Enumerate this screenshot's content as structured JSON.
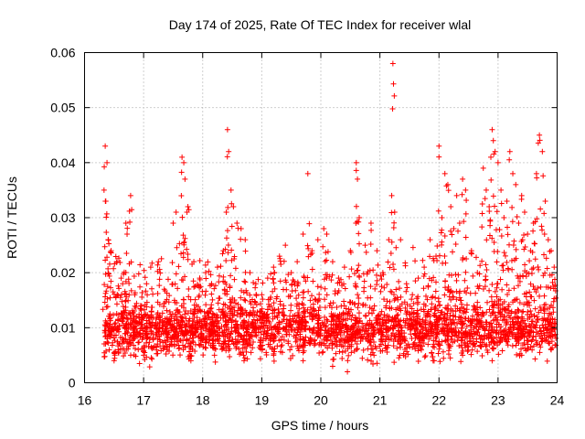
{
  "chart_data": {
    "type": "scatter",
    "title": "Day 174 of 2025, Rate Of TEC Index for receiver wlal",
    "xlabel": "GPS time / hours",
    "ylabel": "ROTI / TECUs",
    "xlim": [
      16,
      24
    ],
    "ylim": [
      0,
      0.06
    ],
    "x_ticks": [
      "16",
      "17",
      "18",
      "19",
      "20",
      "21",
      "22",
      "23",
      "24"
    ],
    "y_ticks": [
      "0",
      "0.01",
      "0.02",
      "0.03",
      "0.04",
      "0.05",
      "0.06"
    ],
    "grid": true,
    "marker": "plus",
    "color": "#ff0000",
    "series": [
      {
        "name": "ROTI",
        "points": [
          [
            16.35,
            0.043
          ],
          [
            16.38,
            0.04
          ],
          [
            16.33,
            0.035
          ],
          [
            16.36,
            0.033
          ],
          [
            16.4,
            0.026
          ],
          [
            16.45,
            0.024
          ],
          [
            16.55,
            0.022
          ],
          [
            16.62,
            0.019
          ],
          [
            16.7,
            0.029
          ],
          [
            16.78,
            0.034
          ],
          [
            16.72,
            0.027
          ],
          [
            16.85,
            0.016
          ],
          [
            16.95,
            0.014
          ],
          [
            17.05,
            0.018
          ],
          [
            17.12,
            0.021
          ],
          [
            17.25,
            0.022
          ],
          [
            17.35,
            0.017
          ],
          [
            17.5,
            0.029
          ],
          [
            17.55,
            0.031
          ],
          [
            17.65,
            0.041
          ],
          [
            17.68,
            0.04
          ],
          [
            17.7,
            0.037
          ],
          [
            17.75,
            0.032
          ],
          [
            17.85,
            0.022
          ],
          [
            17.95,
            0.019
          ],
          [
            18.05,
            0.02
          ],
          [
            18.15,
            0.018
          ],
          [
            18.25,
            0.021
          ],
          [
            18.35,
            0.024
          ],
          [
            18.4,
            0.031
          ],
          [
            18.42,
            0.046
          ],
          [
            18.44,
            0.042
          ],
          [
            18.48,
            0.035
          ],
          [
            18.52,
            0.032
          ],
          [
            18.58,
            0.029
          ],
          [
            18.65,
            0.028
          ],
          [
            18.72,
            0.026
          ],
          [
            18.8,
            0.02
          ],
          [
            18.9,
            0.018
          ],
          [
            19.0,
            0.016
          ],
          [
            19.1,
            0.019
          ],
          [
            19.2,
            0.021
          ],
          [
            19.3,
            0.023
          ],
          [
            19.4,
            0.025
          ],
          [
            19.5,
            0.02
          ],
          [
            19.6,
            0.022
          ],
          [
            19.7,
            0.027
          ],
          [
            19.78,
            0.038
          ],
          [
            19.85,
            0.024
          ],
          [
            19.95,
            0.026
          ],
          [
            20.05,
            0.028
          ],
          [
            20.1,
            0.027
          ],
          [
            20.2,
            0.022
          ],
          [
            20.3,
            0.019
          ],
          [
            20.4,
            0.021
          ],
          [
            20.5,
            0.024
          ],
          [
            20.6,
            0.04
          ],
          [
            20.62,
            0.037
          ],
          [
            20.65,
            0.03
          ],
          [
            20.75,
            0.025
          ],
          [
            20.85,
            0.029
          ],
          [
            20.95,
            0.024
          ],
          [
            21.05,
            0.02
          ],
          [
            21.15,
            0.026
          ],
          [
            21.2,
            0.034
          ],
          [
            21.22,
            0.058
          ],
          [
            21.25,
            0.031
          ],
          [
            21.35,
            0.026
          ],
          [
            21.45,
            0.018
          ],
          [
            21.55,
            0.016
          ],
          [
            21.65,
            0.019
          ],
          [
            21.75,
            0.021
          ],
          [
            21.85,
            0.026
          ],
          [
            21.95,
            0.023
          ],
          [
            22.0,
            0.043
          ],
          [
            22.05,
            0.03
          ],
          [
            22.1,
            0.038
          ],
          [
            22.15,
            0.036
          ],
          [
            22.2,
            0.032
          ],
          [
            22.25,
            0.028
          ],
          [
            22.3,
            0.034
          ],
          [
            22.35,
            0.029
          ],
          [
            22.4,
            0.037
          ],
          [
            22.45,
            0.035
          ],
          [
            22.55,
            0.024
          ],
          [
            22.65,
            0.02
          ],
          [
            22.75,
            0.039
          ],
          [
            22.8,
            0.035
          ],
          [
            22.85,
            0.032
          ],
          [
            22.9,
            0.046
          ],
          [
            22.92,
            0.044
          ],
          [
            22.95,
            0.042
          ],
          [
            23.0,
            0.04
          ],
          [
            23.05,
            0.035
          ],
          [
            23.1,
            0.03
          ],
          [
            23.15,
            0.033
          ],
          [
            23.2,
            0.042
          ],
          [
            23.25,
            0.038
          ],
          [
            23.3,
            0.036
          ],
          [
            23.35,
            0.029
          ],
          [
            23.4,
            0.034
          ],
          [
            23.45,
            0.031
          ],
          [
            23.5,
            0.027
          ],
          [
            23.55,
            0.024
          ],
          [
            23.6,
            0.029
          ],
          [
            23.65,
            0.038
          ],
          [
            23.7,
            0.045
          ],
          [
            23.75,
            0.042
          ],
          [
            23.8,
            0.033
          ],
          [
            23.85,
            0.026
          ],
          [
            23.9,
            0.024
          ],
          [
            23.95,
            0.021
          ],
          [
            16.5,
            0.004
          ],
          [
            17.0,
            0.005
          ],
          [
            17.4,
            0.006
          ],
          [
            17.8,
            0.004
          ],
          [
            18.2,
            0.005
          ],
          [
            18.7,
            0.004
          ],
          [
            19.2,
            0.005
          ],
          [
            19.7,
            0.004
          ],
          [
            20.2,
            0.003
          ],
          [
            20.45,
            0.002
          ],
          [
            20.9,
            0.005
          ],
          [
            21.4,
            0.005
          ],
          [
            21.9,
            0.004
          ],
          [
            22.4,
            0.005
          ],
          [
            22.9,
            0.004
          ],
          [
            23.4,
            0.005
          ],
          [
            23.9,
            0.006
          ]
        ]
      }
    ],
    "dense_band": {
      "x_start": 16.33,
      "x_end": 23.98,
      "center": 0.0095,
      "spread": 0.0055,
      "density": 2600
    }
  }
}
